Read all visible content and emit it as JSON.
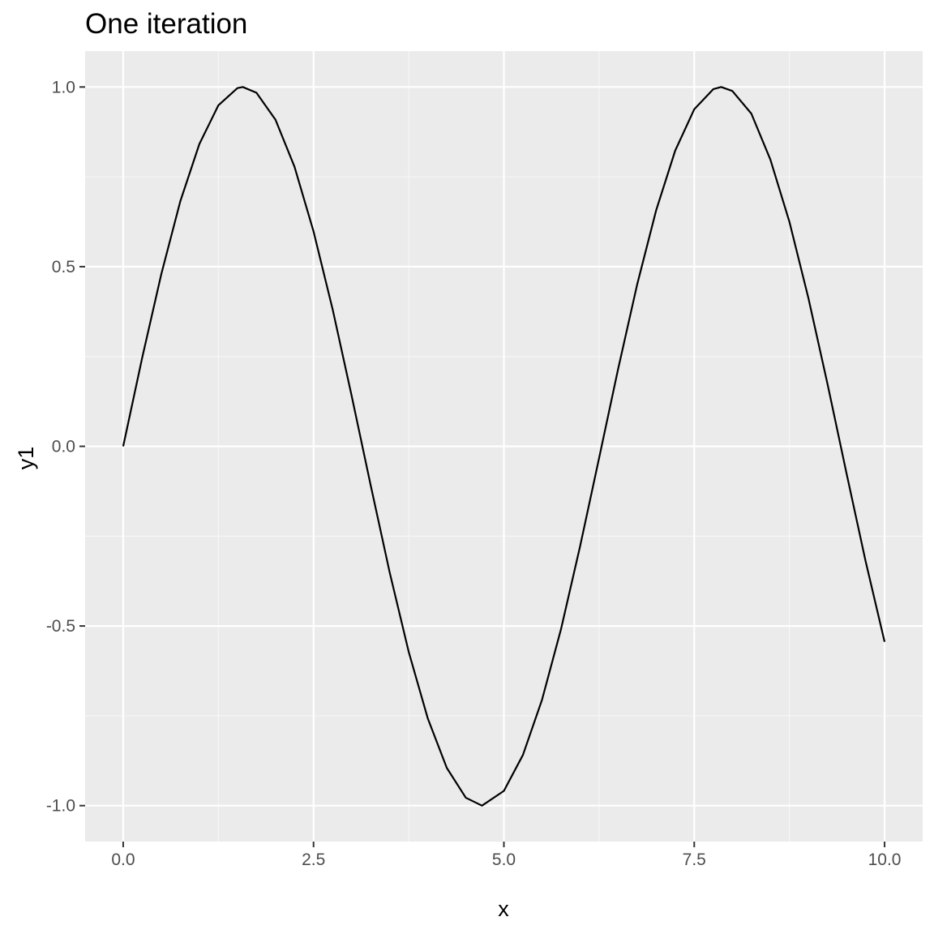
{
  "chart_data": {
    "type": "line",
    "title": "One iteration",
    "xlabel": "x",
    "ylabel": "y1",
    "xlim": [
      -0.5,
      10.5
    ],
    "ylim": [
      -1.1,
      1.1
    ],
    "x_ticks": [
      0,
      2.5,
      5,
      7.5,
      10
    ],
    "x_tick_labels": [
      "0.0",
      "2.5",
      "5.0",
      "7.5",
      "10.0"
    ],
    "x_minor_ticks": [
      1.25,
      3.75,
      6.25,
      8.75
    ],
    "y_ticks": [
      -1,
      -0.5,
      0,
      0.5,
      1
    ],
    "y_tick_labels": [
      "-1.0",
      "-0.5",
      "0.0",
      "0.5",
      "1.0"
    ],
    "y_minor_ticks": [
      -0.75,
      -0.25,
      0.25,
      0.75
    ],
    "grid": true,
    "colors": {
      "panel_background": "#ebebeb",
      "grid_major": "#ffffff",
      "grid_minor": "#f7f7f7",
      "line": "#000000",
      "tick_mark": "#333333"
    },
    "series": [
      {
        "x": [
          0,
          0.25,
          0.5,
          0.75,
          1,
          1.25,
          1.5,
          1.5708,
          1.75,
          2,
          2.25,
          2.5,
          2.75,
          3,
          3.25,
          3.5,
          3.75,
          4,
          4.25,
          4.5,
          4.7124,
          5,
          5.25,
          5.5,
          5.75,
          6,
          6.25,
          6.5,
          6.75,
          7,
          7.25,
          7.5,
          7.75,
          7.854,
          8,
          8.25,
          8.5,
          8.75,
          9,
          9.25,
          9.5,
          9.75,
          10
        ],
        "y": [
          0,
          0.247,
          0.479,
          0.682,
          0.841,
          0.949,
          0.997,
          1,
          0.984,
          0.909,
          0.778,
          0.598,
          0.382,
          0.141,
          -0.108,
          -0.351,
          -0.572,
          -0.757,
          -0.895,
          -0.978,
          -1,
          -0.959,
          -0.859,
          -0.706,
          -0.509,
          -0.279,
          -0.033,
          0.215,
          0.45,
          0.657,
          0.823,
          0.938,
          0.994,
          1,
          0.989,
          0.926,
          0.798,
          0.625,
          0.412,
          0.174,
          -0.075,
          -0.319,
          -0.544
        ]
      }
    ]
  }
}
